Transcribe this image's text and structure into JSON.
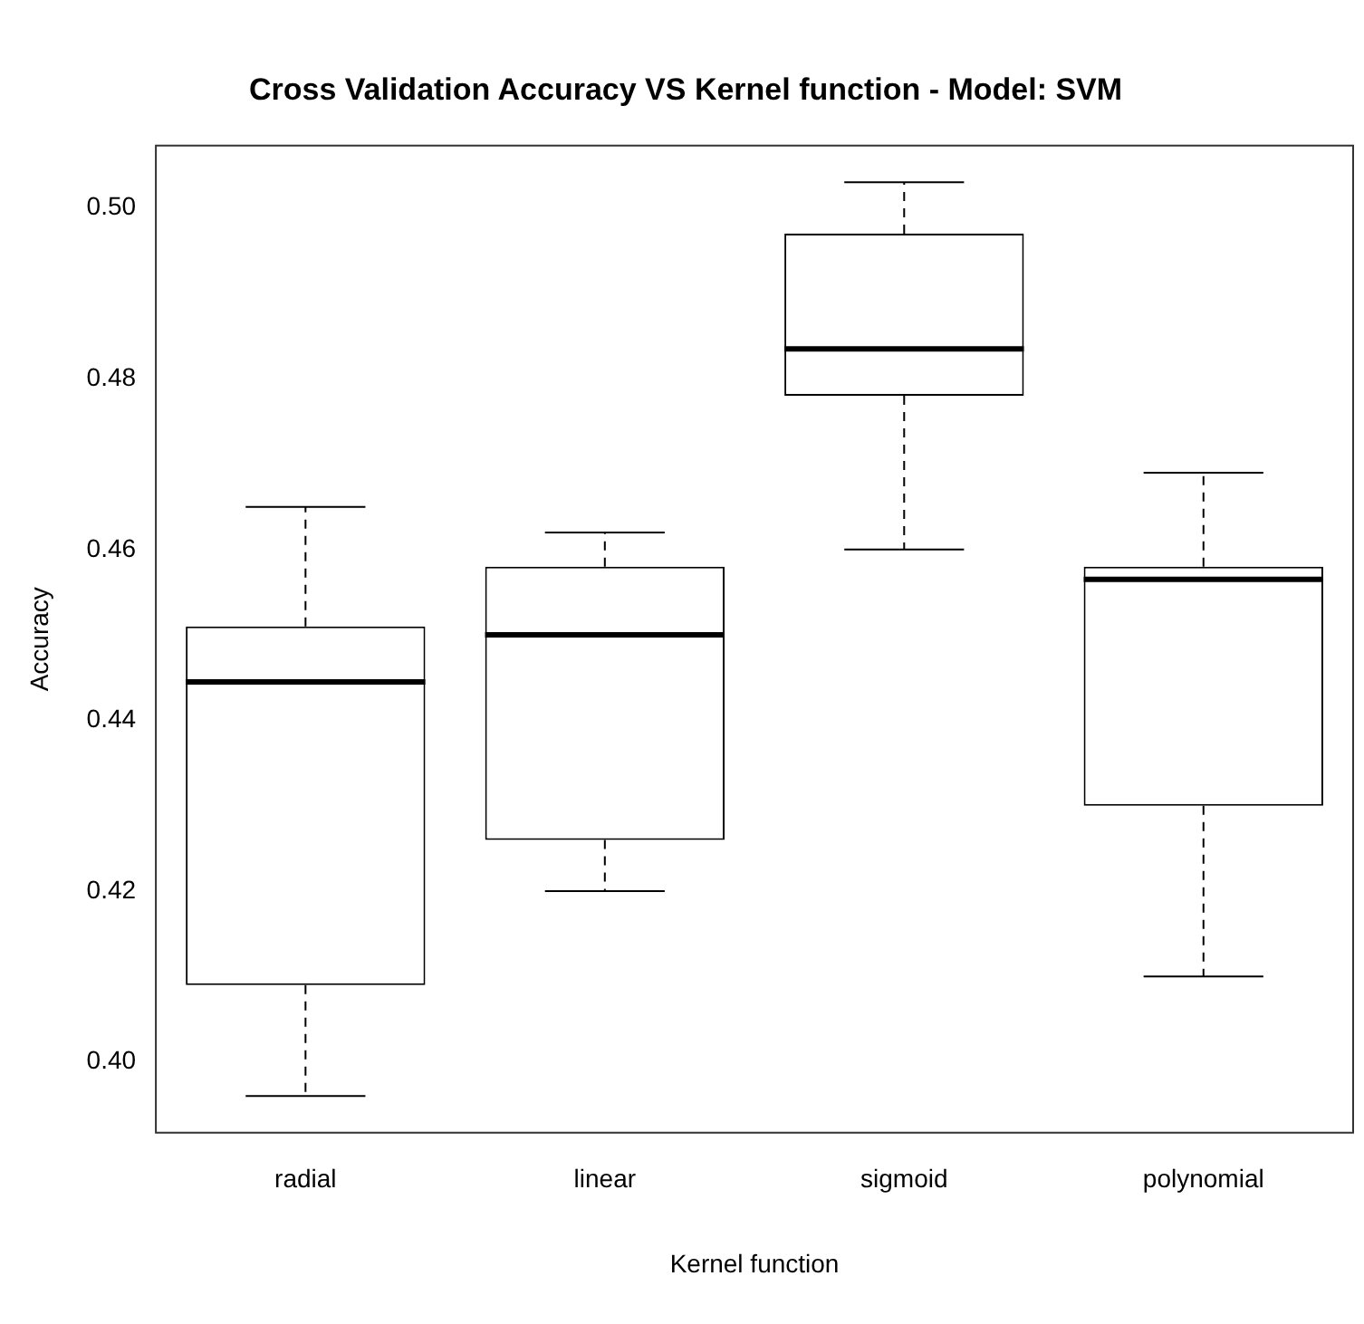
{
  "chart_data": {
    "type": "box",
    "title": "Cross Validation Accuracy VS Kernel function - Model: SVM",
    "xlabel": "Kernel function",
    "ylabel": "Accuracy",
    "categories": [
      "radial",
      "linear",
      "sigmoid",
      "polynomial"
    ],
    "boxes": [
      {
        "low": 0.396,
        "q1": 0.409,
        "median": 0.4445,
        "q3": 0.451,
        "high": 0.465
      },
      {
        "low": 0.42,
        "q1": 0.426,
        "median": 0.45,
        "q3": 0.458,
        "high": 0.462
      },
      {
        "low": 0.46,
        "q1": 0.478,
        "median": 0.4835,
        "q3": 0.497,
        "high": 0.503
      },
      {
        "low": 0.41,
        "q1": 0.43,
        "median": 0.4565,
        "q3": 0.458,
        "high": 0.469
      }
    ],
    "color": "#000000",
    "ylim": [
      0.3917,
      0.5073
    ],
    "yticks": [
      {
        "value": 0.4,
        "label": "0.40"
      },
      {
        "value": 0.42,
        "label": "0.42"
      },
      {
        "value": 0.44,
        "label": "0.44"
      },
      {
        "value": 0.46,
        "label": "0.46"
      },
      {
        "value": 0.48,
        "label": "0.48"
      },
      {
        "value": 0.5,
        "label": "0.50"
      }
    ],
    "grid": false,
    "legend": false
  }
}
